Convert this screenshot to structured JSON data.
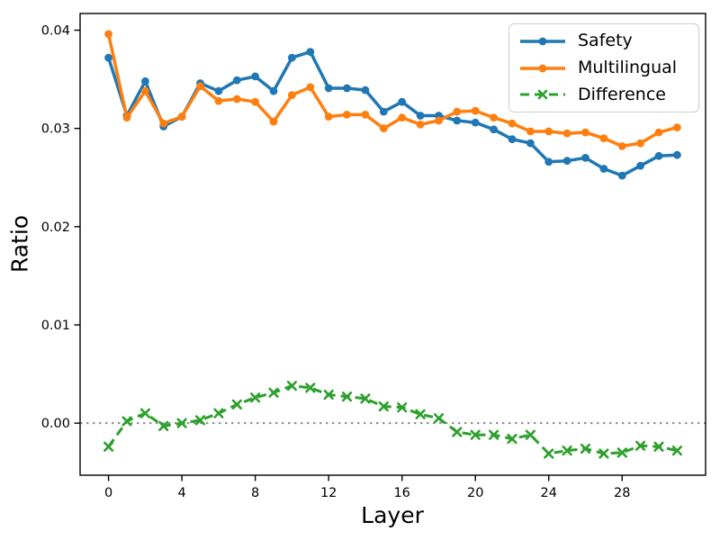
{
  "chart_data": {
    "type": "line",
    "title": "",
    "xlabel": "Layer",
    "ylabel": "Ratio",
    "grid": false,
    "legend_position": "upper right",
    "xlim": [
      -1.55,
      32.55
    ],
    "ylim": [
      -0.0053,
      0.0417
    ],
    "x_ticks": [
      0,
      4,
      8,
      12,
      16,
      20,
      24,
      28
    ],
    "x_tick_labels": [
      "0",
      "4",
      "8",
      "12",
      "16",
      "20",
      "24",
      "28"
    ],
    "y_ticks": [
      0.0,
      0.01,
      0.02,
      0.03,
      0.04
    ],
    "y_tick_labels": [
      "0.00",
      "0.01",
      "0.02",
      "0.03",
      "0.04"
    ],
    "zero_line": {
      "y": 0.0,
      "style": "dotted",
      "color": "#8a8a8a"
    },
    "axis_color": "#000000",
    "x": [
      0,
      1,
      2,
      3,
      4,
      5,
      6,
      7,
      8,
      9,
      10,
      11,
      12,
      13,
      14,
      15,
      16,
      17,
      18,
      19,
      20,
      21,
      22,
      23,
      24,
      25,
      26,
      27,
      28,
      29,
      30,
      31
    ],
    "series": [
      {
        "id": "safety",
        "name": "Safety",
        "color": "#1f77b4",
        "marker": "circle",
        "line_style": "solid",
        "values": [
          0.0372,
          0.0313,
          0.0348,
          0.0302,
          0.0312,
          0.0346,
          0.0338,
          0.0349,
          0.0353,
          0.0338,
          0.0372,
          0.0378,
          0.0341,
          0.0341,
          0.0339,
          0.0317,
          0.0327,
          0.0313,
          0.0313,
          0.0308,
          0.0306,
          0.0299,
          0.0289,
          0.0285,
          0.0266,
          0.0267,
          0.027,
          0.0259,
          0.0252,
          0.0262,
          0.0272,
          0.0273
        ]
      },
      {
        "id": "multilingual",
        "name": "Multilingual",
        "color": "#ff7f0e",
        "marker": "circle",
        "line_style": "solid",
        "values": [
          0.0396,
          0.0311,
          0.0338,
          0.0305,
          0.0312,
          0.0343,
          0.0328,
          0.033,
          0.0327,
          0.0307,
          0.0334,
          0.0342,
          0.0312,
          0.0314,
          0.0314,
          0.03,
          0.0311,
          0.0304,
          0.0308,
          0.0317,
          0.0318,
          0.0311,
          0.0305,
          0.0297,
          0.0297,
          0.0295,
          0.0296,
          0.029,
          0.0282,
          0.0285,
          0.0296,
          0.0301
        ]
      },
      {
        "id": "difference",
        "name": "Difference",
        "color": "#2ca02c",
        "marker": "x",
        "line_style": "dashed",
        "values": [
          -0.0024,
          0.0002,
          0.001,
          -0.0003,
          0.0,
          0.0003,
          0.001,
          0.0019,
          0.0026,
          0.0031,
          0.0038,
          0.0036,
          0.0029,
          0.0027,
          0.0025,
          0.0017,
          0.0016,
          0.0009,
          0.0005,
          -0.0009,
          -0.0012,
          -0.0012,
          -0.0016,
          -0.0012,
          -0.0031,
          -0.0028,
          -0.0026,
          -0.0031,
          -0.003,
          -0.0023,
          -0.0024,
          -0.0028
        ]
      }
    ]
  }
}
